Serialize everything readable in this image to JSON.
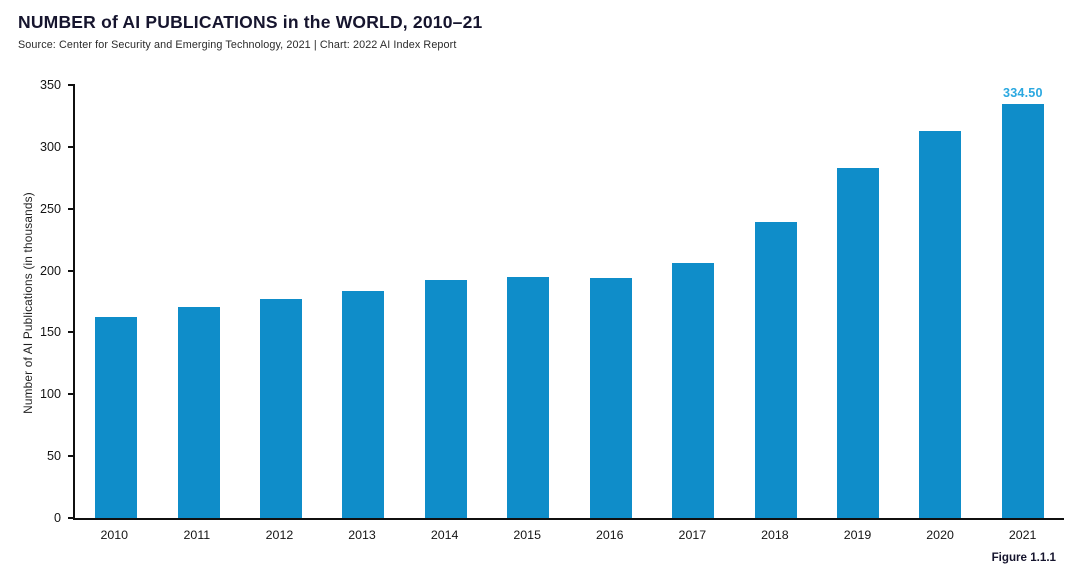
{
  "header": {
    "title": "NUMBER of AI PUBLICATIONS in the WORLD, 2010–21",
    "source": "Source: Center for Security and Emerging Technology, 2021 | Chart: 2022 AI Index Report"
  },
  "figure_caption": "Figure 1.1.1",
  "colors": {
    "bar": "#0f8dc9",
    "value_label": "#2aa8e0",
    "axis": "#101010",
    "title_text": "#16152e"
  },
  "chart_data": {
    "type": "bar",
    "title": "NUMBER of AI PUBLICATIONS in the WORLD, 2010–21",
    "source_note": "Source: Center for Security and Emerging Technology, 2021 | Chart: 2022 AI Index Report",
    "categories": [
      "2010",
      "2011",
      "2012",
      "2013",
      "2014",
      "2015",
      "2016",
      "2017",
      "2018",
      "2019",
      "2020",
      "2021"
    ],
    "values": [
      162.4,
      170.2,
      177.2,
      183.7,
      192.2,
      194.7,
      194.2,
      206.5,
      238.9,
      283.0,
      312.5,
      334.5
    ],
    "bar_labels": [
      "",
      "",
      "",
      "",
      "",
      "",
      "",
      "",
      "",
      "",
      "",
      "334.50"
    ],
    "xlabel": "",
    "ylabel": "Number of AI Publications (in thousands)",
    "ylim": [
      0,
      350
    ],
    "ytick_step": 50,
    "grid": false,
    "legend": null,
    "bar_color": "#0f8dc9",
    "value_label_color": "#2aa8e0"
  }
}
